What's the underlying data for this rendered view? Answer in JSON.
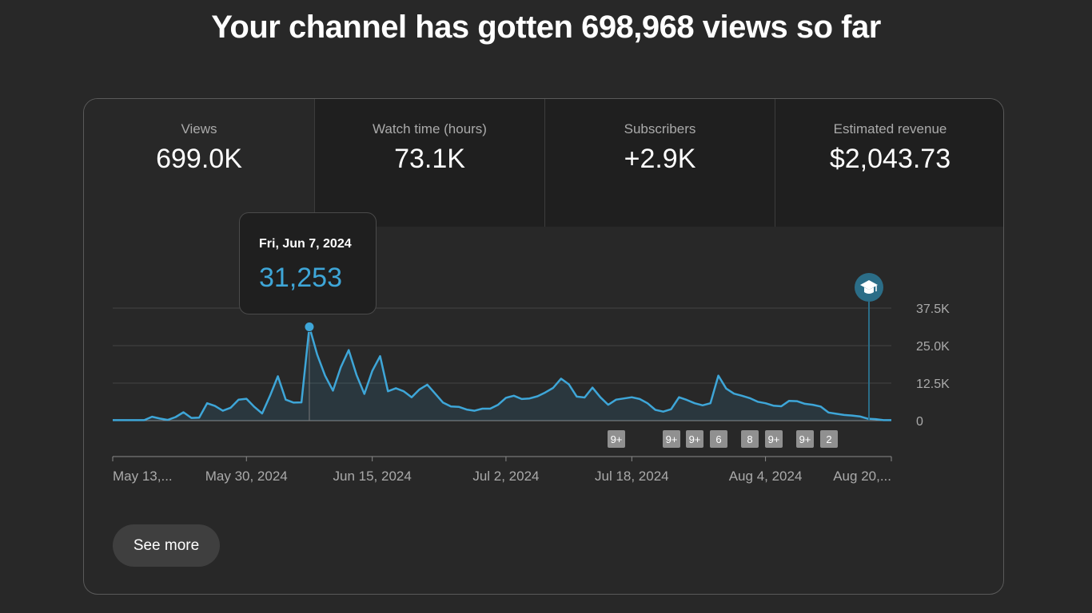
{
  "headline": "Your channel has gotten 698,968 views so far",
  "metrics": [
    {
      "label": "Views",
      "value": "699.0K"
    },
    {
      "label": "Watch time (hours)",
      "value": "73.1K"
    },
    {
      "label": "Subscribers",
      "value": "+2.9K"
    },
    {
      "label": "Estimated revenue",
      "value": "$2,043.73"
    }
  ],
  "tooltip": {
    "date": "Fri, Jun 7, 2024",
    "value": "31,253"
  },
  "see_more_label": "See more",
  "colors": {
    "line": "#3ea6d8",
    "milestone": "#2b6d87",
    "badge": "#909090"
  },
  "milestone_icon": "graduation-cap-icon",
  "chart_data": {
    "type": "area",
    "xlabel": "",
    "ylabel": "",
    "ylim": [
      0,
      37500
    ],
    "y_ticks": [
      "0",
      "12.5K",
      "25.0K",
      "37.5K"
    ],
    "y_tick_values": [
      0,
      12500,
      25000,
      37500
    ],
    "x_tick_labels": [
      "May 13,...",
      "May 30, 2024",
      "Jun 15, 2024",
      "Jul 2, 2024",
      "Jul 18, 2024",
      "Aug 4, 2024",
      "Aug 20,..."
    ],
    "x_tick_days": [
      0,
      17,
      33,
      50,
      66,
      83,
      99
    ],
    "legend": "none",
    "grid": true,
    "series": [
      {
        "values": [
          150,
          150,
          150,
          150,
          150,
          1300,
          700,
          250,
          1200,
          2800,
          900,
          1000,
          5800,
          4900,
          3300,
          4300,
          7000,
          7300,
          4600,
          2400,
          8300,
          14800,
          7000,
          6000,
          6100,
          31253,
          22000,
          15000,
          10000,
          17800,
          23500,
          15200,
          8900,
          16600,
          21500,
          9800,
          10800,
          9800,
          7800,
          10400,
          12000,
          9000,
          6000,
          4700,
          4600,
          3700,
          3300,
          4000,
          4000,
          5300,
          7600,
          8300,
          7200,
          7400,
          8100,
          9400,
          10900,
          14000,
          12100,
          8000,
          7700,
          11000,
          7800,
          5300,
          7000,
          7400,
          7800,
          7200,
          5800,
          3600,
          3000,
          3800,
          7800,
          6900,
          5800,
          5100,
          5800,
          15000,
          10700,
          9000,
          8300,
          7500,
          6300,
          5800,
          5000,
          4800,
          6600,
          6500,
          5600,
          5300,
          4700,
          2700,
          2300,
          1900,
          1700,
          1400,
          650,
          500,
          150,
          150
        ]
      }
    ],
    "highlight": {
      "label": "Fri, Jun 7, 2024",
      "value": 31253
    },
    "milestone_badges": [
      "9+",
      "9+",
      "9+",
      "6",
      "8",
      "9+",
      "9+",
      "2"
    ]
  }
}
